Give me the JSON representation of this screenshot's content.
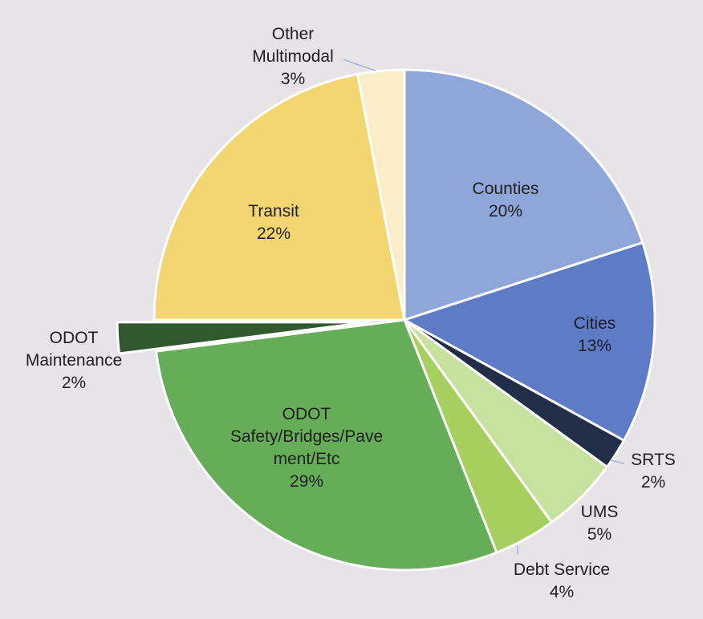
{
  "chart_data": {
    "type": "pie",
    "title": "",
    "start_angle_deg": 0,
    "direction": "clockwise",
    "slices": [
      {
        "label_lines": [
          "Counties"
        ],
        "value": 20,
        "value_label": "20%",
        "color": "#8fa6d8",
        "exploded": false,
        "label_position": "inside"
      },
      {
        "label_lines": [
          "Cities"
        ],
        "value": 13,
        "value_label": "13%",
        "color": "#5d7bc7",
        "exploded": false,
        "label_position": "inside"
      },
      {
        "label_lines": [
          "SRTS"
        ],
        "value": 2,
        "value_label": "2%",
        "color": "#222d47",
        "exploded": false,
        "label_position": "outside"
      },
      {
        "label_lines": [
          "UMS"
        ],
        "value": 5,
        "value_label": "5%",
        "color": "#c7e29f",
        "exploded": false,
        "label_position": "outside"
      },
      {
        "label_lines": [
          "Debt Service"
        ],
        "value": 4,
        "value_label": "4%",
        "color": "#a6cf5e",
        "exploded": false,
        "label_position": "outside"
      },
      {
        "label_lines": [
          "ODOT",
          "Safety/Bridges/Pave",
          "ment/Etc"
        ],
        "value": 29,
        "value_label": "29%",
        "color": "#65ad57",
        "exploded": false,
        "label_position": "inside"
      },
      {
        "label_lines": [
          "ODOT",
          "Maintenance"
        ],
        "value": 2,
        "value_label": "2%",
        "color": "#32582f",
        "exploded": true,
        "label_position": "outside"
      },
      {
        "label_lines": [
          "Transit"
        ],
        "value": 22,
        "value_label": "22%",
        "color": "#f3d66f",
        "exploded": false,
        "label_position": "inside"
      },
      {
        "label_lines": [
          "Other",
          "Multimodal"
        ],
        "value": 3,
        "value_label": "3%",
        "color": "#faedc8",
        "exploded": false,
        "label_position": "outside"
      }
    ]
  }
}
